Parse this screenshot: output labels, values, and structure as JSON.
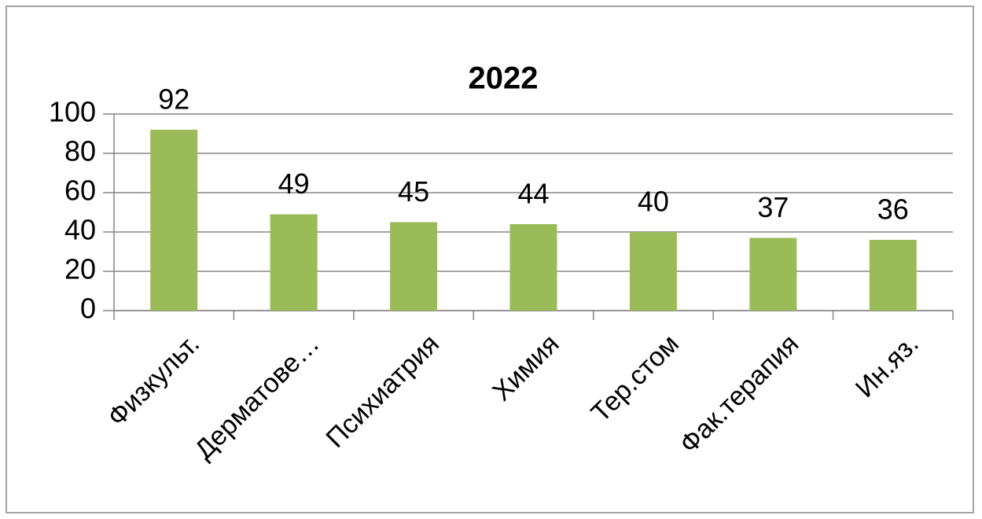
{
  "chart_data": {
    "type": "bar",
    "title": "2022",
    "categories": [
      "Физкульт.",
      "Дерматове…",
      "Психиатрия",
      "Химия",
      "Тер.стом",
      "Фак.терапия",
      "Ин.яз."
    ],
    "values": [
      92,
      49,
      45,
      44,
      40,
      37,
      36
    ],
    "color": "#9bbb59",
    "ylim": [
      0,
      100
    ],
    "yticks": [
      0,
      20,
      40,
      60,
      80,
      100
    ],
    "grid": true
  }
}
